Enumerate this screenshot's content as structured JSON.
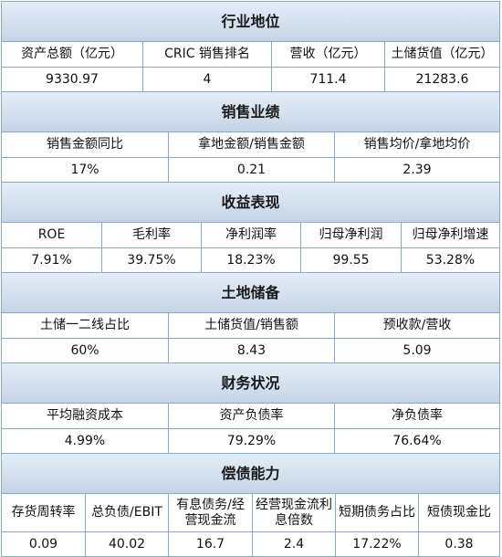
{
  "sections": [
    {
      "title": "行业地位",
      "headers": [
        "资产总额（亿元）",
        "CRIC 销售排名",
        "营收（亿元）",
        "土储货值（亿元）"
      ],
      "values": [
        "9330.97",
        "4",
        "711.4",
        "21283.6"
      ]
    },
    {
      "title": "销售业绩",
      "headers": [
        "销售金额同比",
        "拿地金额/销售金额",
        "销售均价/拿地均价"
      ],
      "values": [
        "17%",
        "0.21",
        "2.39"
      ]
    },
    {
      "title": "收益表现",
      "headers": [
        "ROE",
        "毛利率",
        "净利润率",
        "归母净利润",
        "归母净利增速"
      ],
      "values": [
        "7.91%",
        "39.75%",
        "18.23%",
        "99.55",
        "53.28%"
      ]
    },
    {
      "title": "土地储备",
      "headers": [
        "土储一二线占比",
        "土储货值/销售额",
        "预收款/营收"
      ],
      "values": [
        "60%",
        "8.43",
        "5.09"
      ]
    },
    {
      "title": "财务状况",
      "headers": [
        "平均融资成本",
        "资产负债率",
        "净负债率"
      ],
      "values": [
        "4.99%",
        "79.29%",
        "76.64%"
      ]
    },
    {
      "title": "偿债能力",
      "headers": [
        "存货周转率",
        "总负债/EBIT",
        "有息债务/经营现金流",
        "经营现金流利息倍数",
        "短期债务占比",
        "短债现金比"
      ],
      "values": [
        "0.09",
        "40.02",
        "16.7",
        "2.4",
        "17.22%",
        "0.38"
      ]
    }
  ]
}
